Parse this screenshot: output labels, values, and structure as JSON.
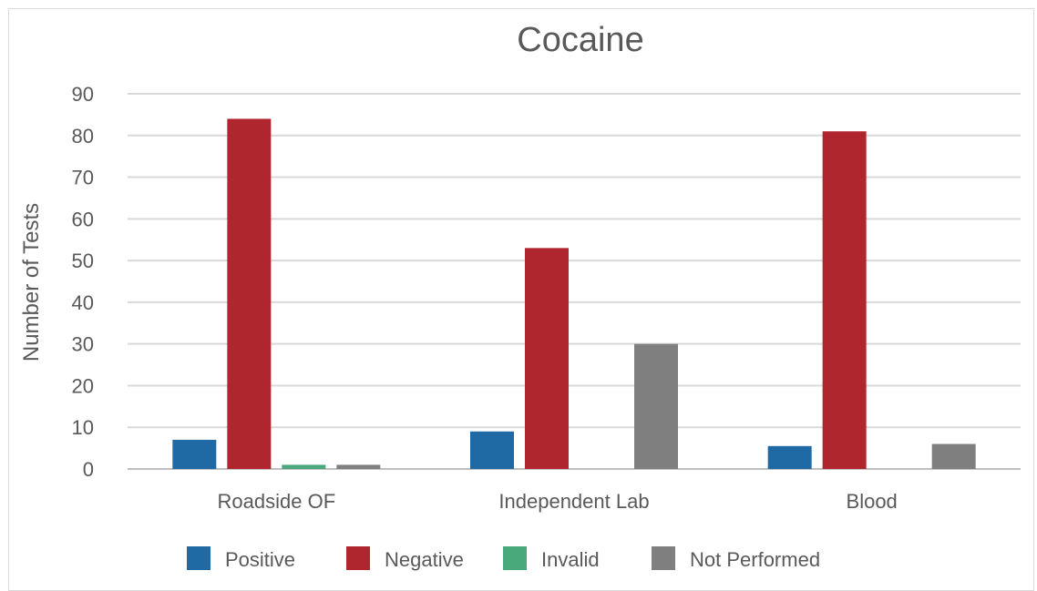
{
  "chart_data": {
    "type": "bar",
    "title": "Cocaine",
    "ylabel": "Number of Tests",
    "xlabel": "",
    "categories": [
      "Roadside OF",
      "Independent Lab",
      "Blood"
    ],
    "series": [
      {
        "name": "Positive",
        "color": "#1f6aa5",
        "values": [
          7,
          9,
          5.5
        ]
      },
      {
        "name": "Negative",
        "color": "#b0262f",
        "values": [
          84,
          53,
          81
        ]
      },
      {
        "name": "Invalid",
        "color": "#4aa97a",
        "values": [
          1,
          0,
          0
        ]
      },
      {
        "name": "Not Performed",
        "color": "#7f7f7f",
        "values": [
          1,
          30,
          6
        ]
      }
    ],
    "ylim": [
      0,
      90
    ],
    "yticks": [
      0,
      10,
      20,
      30,
      40,
      50,
      60,
      70,
      80,
      90
    ],
    "grid": true,
    "legend": "bottom"
  }
}
